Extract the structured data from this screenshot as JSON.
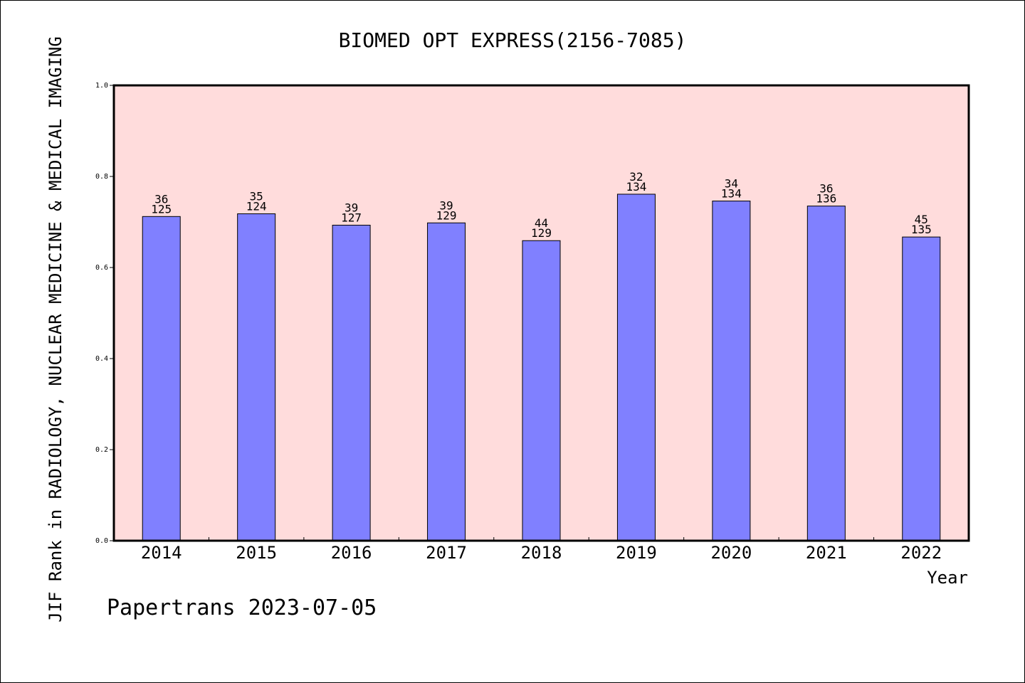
{
  "chart_data": {
    "type": "bar",
    "title": "BIOMED OPT EXPRESS(2156-7085)",
    "xlabel": "Year",
    "ylabel": "JIF Rank in RADIOLOGY, NUCLEAR MEDICINE & MEDICAL IMAGING",
    "categories": [
      "2014",
      "2015",
      "2016",
      "2017",
      "2018",
      "2019",
      "2020",
      "2021",
      "2022"
    ],
    "values": [
      0.712,
      0.718,
      0.693,
      0.698,
      0.659,
      0.761,
      0.746,
      0.735,
      0.667
    ],
    "rank": [
      "36",
      "35",
      "39",
      "39",
      "44",
      "32",
      "34",
      "36",
      "45"
    ],
    "total": [
      "125",
      "124",
      "127",
      "129",
      "129",
      "134",
      "134",
      "136",
      "135"
    ],
    "ylim": [
      0,
      1.0
    ],
    "yticks": [
      "0.0",
      "0.2",
      "0.4",
      "0.6",
      "0.8",
      "1.0"
    ],
    "grid": false,
    "bar_color": "#8080ff",
    "plot_background": "#ffdcdc",
    "footer": "Papertrans 2023-07-05"
  }
}
